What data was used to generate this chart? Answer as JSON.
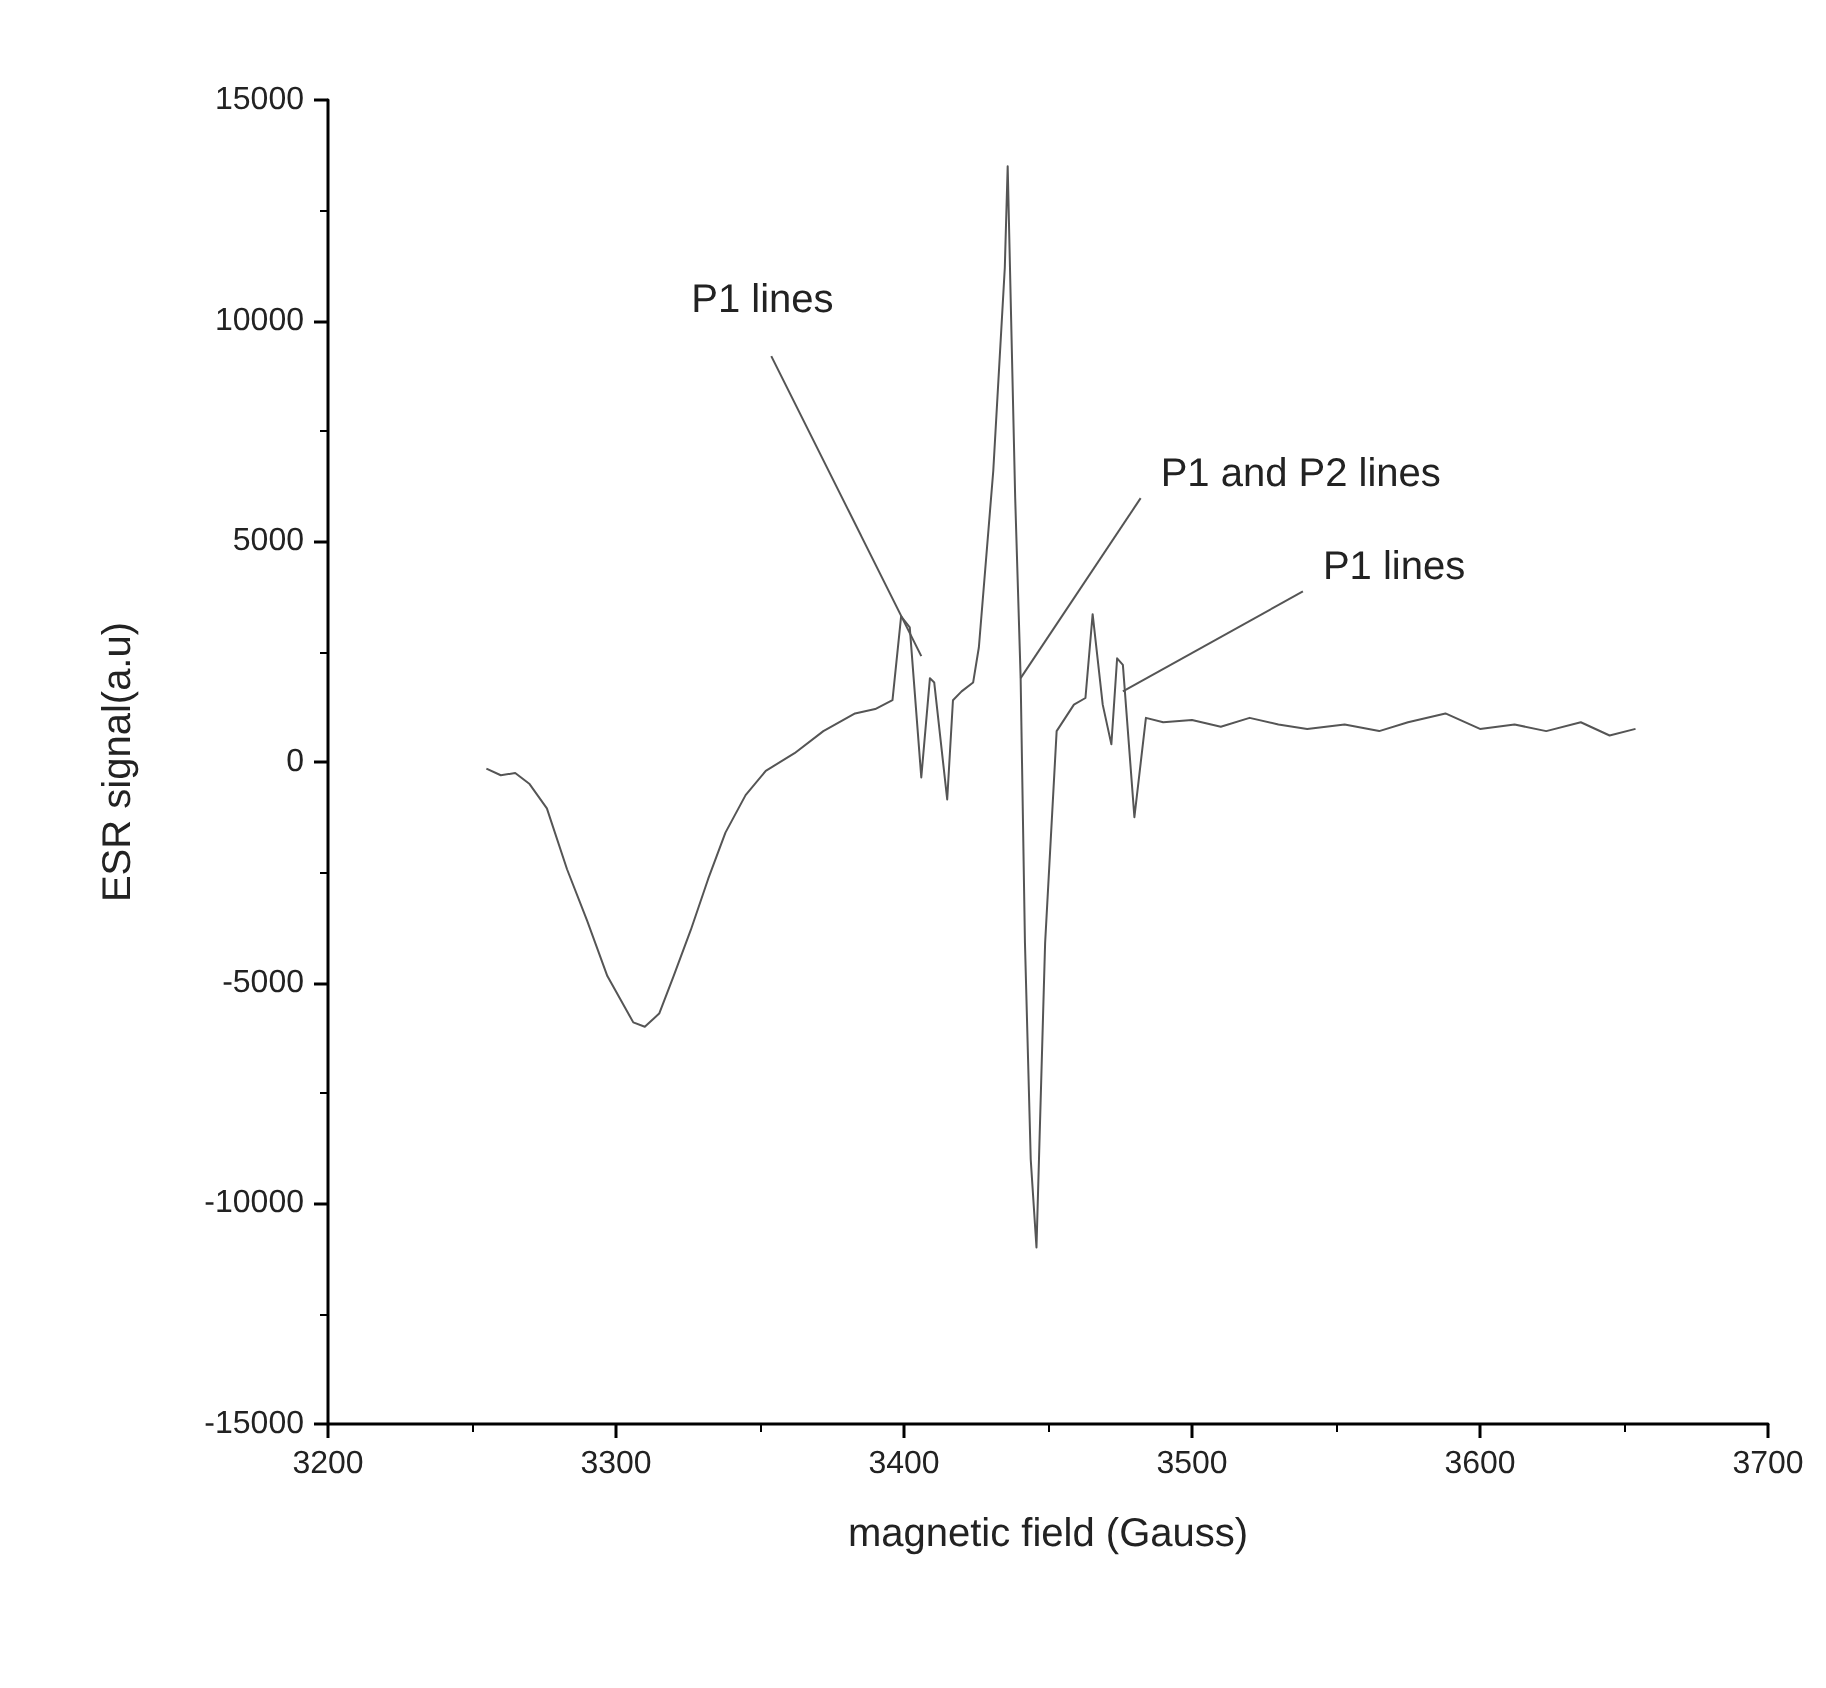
{
  "chart_data": {
    "type": "line",
    "xlabel": "magnetic field (Gauss)",
    "ylabel": "ESR signal(a.u)",
    "xlim": [
      3200,
      3700
    ],
    "xticks": [
      3200,
      3300,
      3400,
      3500,
      3600,
      3700
    ],
    "ylim": [
      -15000,
      15000
    ],
    "yticks": [
      -15000,
      -10000,
      -5000,
      0,
      5000,
      10000,
      15000
    ],
    "marker": "none",
    "line_style": "solid",
    "annotations": [
      {
        "text": "P1 lines",
        "x": 3406,
        "y": 2400
      },
      {
        "text": "P1 and P2 lines",
        "x": 3440.5,
        "y": 1900
      },
      {
        "text": "P1 lines",
        "x": 3476,
        "y": 1600
      }
    ],
    "series": [
      {
        "color": "#555555",
        "x": [
          3255,
          3260,
          3265,
          3270,
          3276,
          3283,
          3290,
          3297,
          3306,
          3310,
          3315,
          3320,
          3326,
          3332,
          3338,
          3345,
          3352,
          3362,
          3372,
          3383,
          3390,
          3396,
          3399,
          3402,
          3406,
          3409,
          3410.5,
          3415,
          3417,
          3420,
          3424,
          3426,
          3431,
          3435,
          3436,
          3438.6,
          3440.5,
          3442,
          3444,
          3446,
          3449,
          3453,
          3459,
          3463,
          3465.5,
          3469,
          3472,
          3474,
          3476,
          3480,
          3484,
          3490,
          3500,
          3510,
          3520,
          3530,
          3540,
          3553,
          3565,
          3575,
          3588,
          3600,
          3612,
          3623,
          3635,
          3645,
          3654
        ],
        "values": [
          -150,
          -300,
          -250,
          -500,
          -1050,
          -2430,
          -3600,
          -4850,
          -5900,
          -6000,
          -5700,
          -4850,
          -3800,
          -2650,
          -1600,
          -750,
          -200,
          200,
          700,
          1100,
          1200,
          1400,
          3300,
          3050,
          -350,
          1900,
          1800,
          -850,
          1400,
          1600,
          1800,
          2600,
          6600,
          11200,
          13500,
          6000,
          1900,
          -4100,
          -9000,
          -11000,
          -4100,
          700,
          1300,
          1450,
          3350,
          1300,
          400,
          2350,
          2200,
          -1250,
          1000,
          900,
          950,
          800,
          1000,
          850,
          750,
          850,
          700,
          900,
          1100,
          750,
          850,
          700,
          900,
          600,
          750
        ]
      }
    ]
  }
}
